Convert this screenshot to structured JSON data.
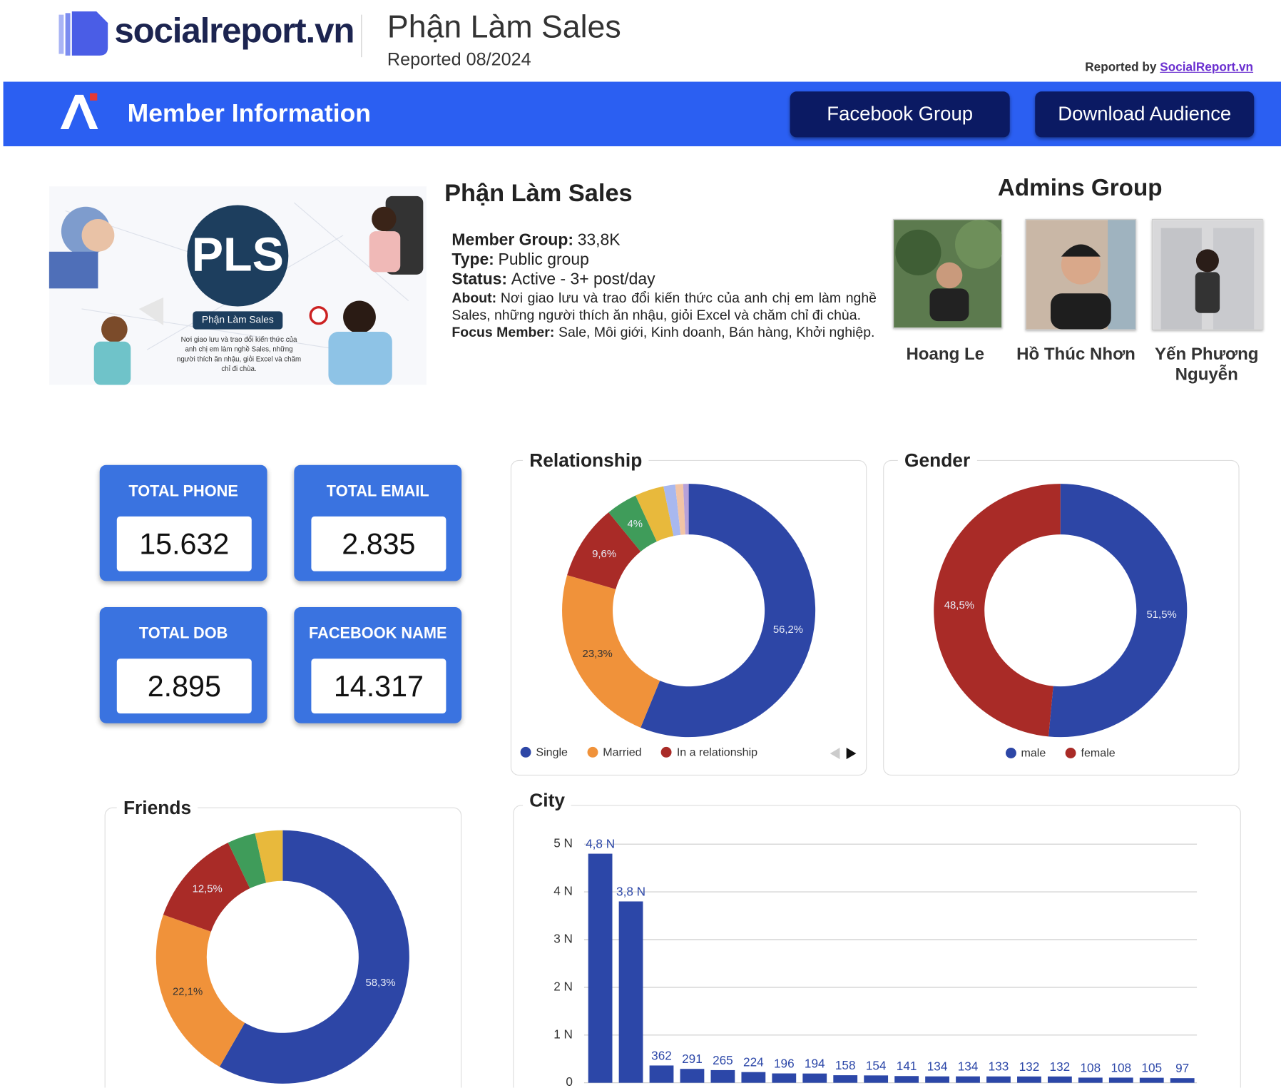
{
  "header": {
    "logo": "socialreport.vn",
    "title": "Phận Làm Sales",
    "subtitle": "Reported 08/2024",
    "reported_by": "Reported by",
    "reported_link": "SocialReport.vn"
  },
  "nav": {
    "title": "Member Information",
    "buttons": [
      "Facebook Group",
      "Download Audience"
    ]
  },
  "banner": {
    "logo": "PLS",
    "caption": "Phận Làm Sales",
    "tagline": "Nơi giao lưu và trao đổi kiến thức của anh chị em làm nghề Sales, những người thích ăn nhậu, giỏi Excel và chăm chỉ đi chùa."
  },
  "group": {
    "name": "Phận Làm Sales",
    "fields": [
      {
        "label": "Member Group:",
        "value": "33,8K"
      },
      {
        "label": "Type:",
        "value": "Public group"
      },
      {
        "label": "Status:",
        "value": "Active - 3+ post/day"
      },
      {
        "label": "About:",
        "value": "Nơi giao lưu và trao đổi kiến thức của anh chị em làm nghề Sales, những người thích ăn nhậu, giỏi Excel và chăm chỉ đi chùa."
      },
      {
        "label": "Focus Member:",
        "value": "Sale, Môi giới, Kinh doanh, Bán hàng, Khởi nghiệp."
      }
    ]
  },
  "admins": {
    "title": "Admins Group",
    "names": [
      "Hoang Le",
      "Hồ Thúc Nhơn",
      "Yến Phương Nguyễn"
    ]
  },
  "stats": [
    {
      "title": "TOTAL PHONE",
      "value": "15.632"
    },
    {
      "title": "TOTAL EMAIL",
      "value": "2.835"
    },
    {
      "title": "TOTAL DOB",
      "value": "2.895"
    },
    {
      "title": "FACEBOOK NAME",
      "value": "14.317"
    }
  ],
  "chart_data": [
    {
      "type": "donut",
      "title": "Relationship",
      "legend": "bottom",
      "categories": [
        "Single",
        "Married",
        "In a relationship",
        null,
        null,
        null,
        null,
        null
      ],
      "values": [
        56.2,
        23.3,
        9.6,
        4,
        3.7,
        1.5,
        1.0,
        0.7
      ],
      "value_labels": [
        "56,2%",
        "23,3%",
        "9,6%",
        "4%",
        null,
        null,
        null,
        null
      ],
      "colors": [
        "#2d46a6",
        "#f0923a",
        "#a92b27",
        "#3f9c5a",
        "#e8b93c",
        "#a8b8ef",
        "#f2c4a5",
        "#b7a1d9"
      ]
    },
    {
      "type": "donut",
      "title": "Gender",
      "legend": "bottom",
      "categories": [
        "male",
        "female"
      ],
      "values": [
        51.5,
        48.5
      ],
      "value_labels": [
        "51,5%",
        "48,5%"
      ],
      "colors": [
        "#2d46a6",
        "#a92b27"
      ]
    },
    {
      "type": "donut",
      "title": "Friends",
      "categories": [
        null,
        null,
        null,
        null,
        null
      ],
      "values": [
        58.3,
        22.1,
        12.5,
        3.6,
        3.5
      ],
      "value_labels": [
        "58,3%",
        "22,1%",
        "12,5%",
        null,
        null
      ],
      "colors": [
        "#2d46a6",
        "#f0923a",
        "#a92b27",
        "#3f9c5a",
        "#e8b93c"
      ]
    },
    {
      "type": "bar",
      "title": "City",
      "color": "#2c47a8",
      "grid": true,
      "categories": [
        null,
        null,
        null,
        null,
        null,
        null,
        null,
        null,
        null,
        null,
        null,
        null,
        null,
        null,
        null,
        null,
        null,
        null,
        null,
        null
      ],
      "values": [
        4.8,
        3.8,
        0.362,
        0.291,
        0.265,
        0.224,
        0.196,
        0.194,
        0.158,
        0.154,
        0.141,
        0.134,
        0.134,
        0.133,
        0.132,
        0.132,
        0.108,
        0.108,
        0.105,
        0.097
      ],
      "value_labels": [
        "4,8 N",
        "3,8 N",
        "362",
        "291",
        "265",
        "224",
        "196",
        "194",
        "158",
        "154",
        "141",
        "134",
        "134",
        "133",
        "132",
        "132",
        "108",
        "108",
        "105",
        "97"
      ],
      "ylim": [
        0,
        5
      ],
      "yticks": [
        0,
        {
          "value": 1,
          "label": "1 N"
        },
        {
          "value": 2,
          "label": "2 N"
        },
        {
          "value": 3,
          "label": "3 N"
        },
        {
          "value": 4,
          "label": "4 N"
        },
        {
          "value": 5,
          "label": "5 N"
        }
      ]
    }
  ]
}
